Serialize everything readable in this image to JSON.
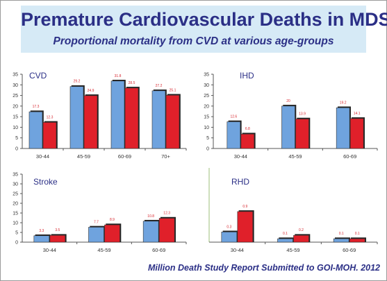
{
  "header": {
    "title": "Premature Cardiovascular Deaths in MDS",
    "subtitle": "Proportional mortality from CVD at various age-groups"
  },
  "footer": {
    "text": "Million Death Study Report Submitted to GOI-MOH. 2012"
  },
  "colors": {
    "series_a": "#6fa3de",
    "series_b": "#e0202a",
    "title_text": "#2b2f86",
    "banner_bg": "#d6eaf6"
  },
  "chart_data": [
    {
      "type": "bar",
      "title": "CVD",
      "categories": [
        "30-44",
        "45-59",
        "60-69",
        "70+"
      ],
      "series": [
        {
          "values": [
            17.3,
            29.2,
            31.8,
            27.2
          ],
          "labels": [
            "17.3",
            "29.2",
            "31.8",
            "27.2"
          ]
        },
        {
          "values": [
            12.3,
            24.9,
            28.5,
            25.1
          ],
          "labels": [
            "12.3",
            "24.9",
            "28.5",
            "25.1"
          ]
        }
      ],
      "ylim": [
        0,
        35
      ],
      "yticks": [
        0,
        5,
        10,
        15,
        20,
        25,
        30,
        35
      ],
      "ylabel": "",
      "xlabel": "",
      "grid": false
    },
    {
      "type": "bar",
      "title": "IHD",
      "categories": [
        "30-44",
        "45-59",
        "60-69"
      ],
      "series": [
        {
          "values": [
            12.6,
            20,
            19.2
          ],
          "labels": [
            "12.6",
            "20",
            "19.2"
          ]
        },
        {
          "values": [
            6.8,
            13.9,
            14.1
          ],
          "labels": [
            "6.8",
            "13.9",
            "14.1"
          ]
        }
      ],
      "ylim": [
        0,
        35
      ],
      "yticks": [
        0,
        5,
        10,
        15,
        20,
        25,
        30,
        35
      ],
      "ylabel": "",
      "xlabel": "",
      "grid": false
    },
    {
      "type": "bar",
      "title": "Stroke",
      "categories": [
        "30-44",
        "45-59",
        "60-69"
      ],
      "series": [
        {
          "values": [
            3.3,
            7.7,
            10.8
          ],
          "labels": [
            "3.3",
            "7.7",
            "10.8"
          ]
        },
        {
          "values": [
            3.5,
            8.9,
            12.3
          ],
          "labels": [
            "3.5",
            "8.9",
            "12.3"
          ]
        }
      ],
      "ylim": [
        0,
        35
      ],
      "yticks": [
        0,
        5,
        10,
        15,
        20,
        25,
        30,
        35
      ],
      "ylabel": "",
      "xlabel": "",
      "grid": false
    },
    {
      "type": "bar",
      "title": "RHD",
      "categories": [
        "30-44",
        "45-59",
        "60-69"
      ],
      "series": [
        {
          "values": [
            0.3,
            0.1,
            0.1
          ],
          "labels": [
            "0.3",
            "0.1",
            "0.1"
          ]
        },
        {
          "values": [
            0.9,
            0.2,
            0.1
          ],
          "labels": [
            "0.9",
            "0.2",
            "0.1"
          ]
        }
      ],
      "ylim": [
        0,
        1
      ],
      "yticks": [],
      "ylabel": "",
      "xlabel": "",
      "grid": false
    }
  ]
}
